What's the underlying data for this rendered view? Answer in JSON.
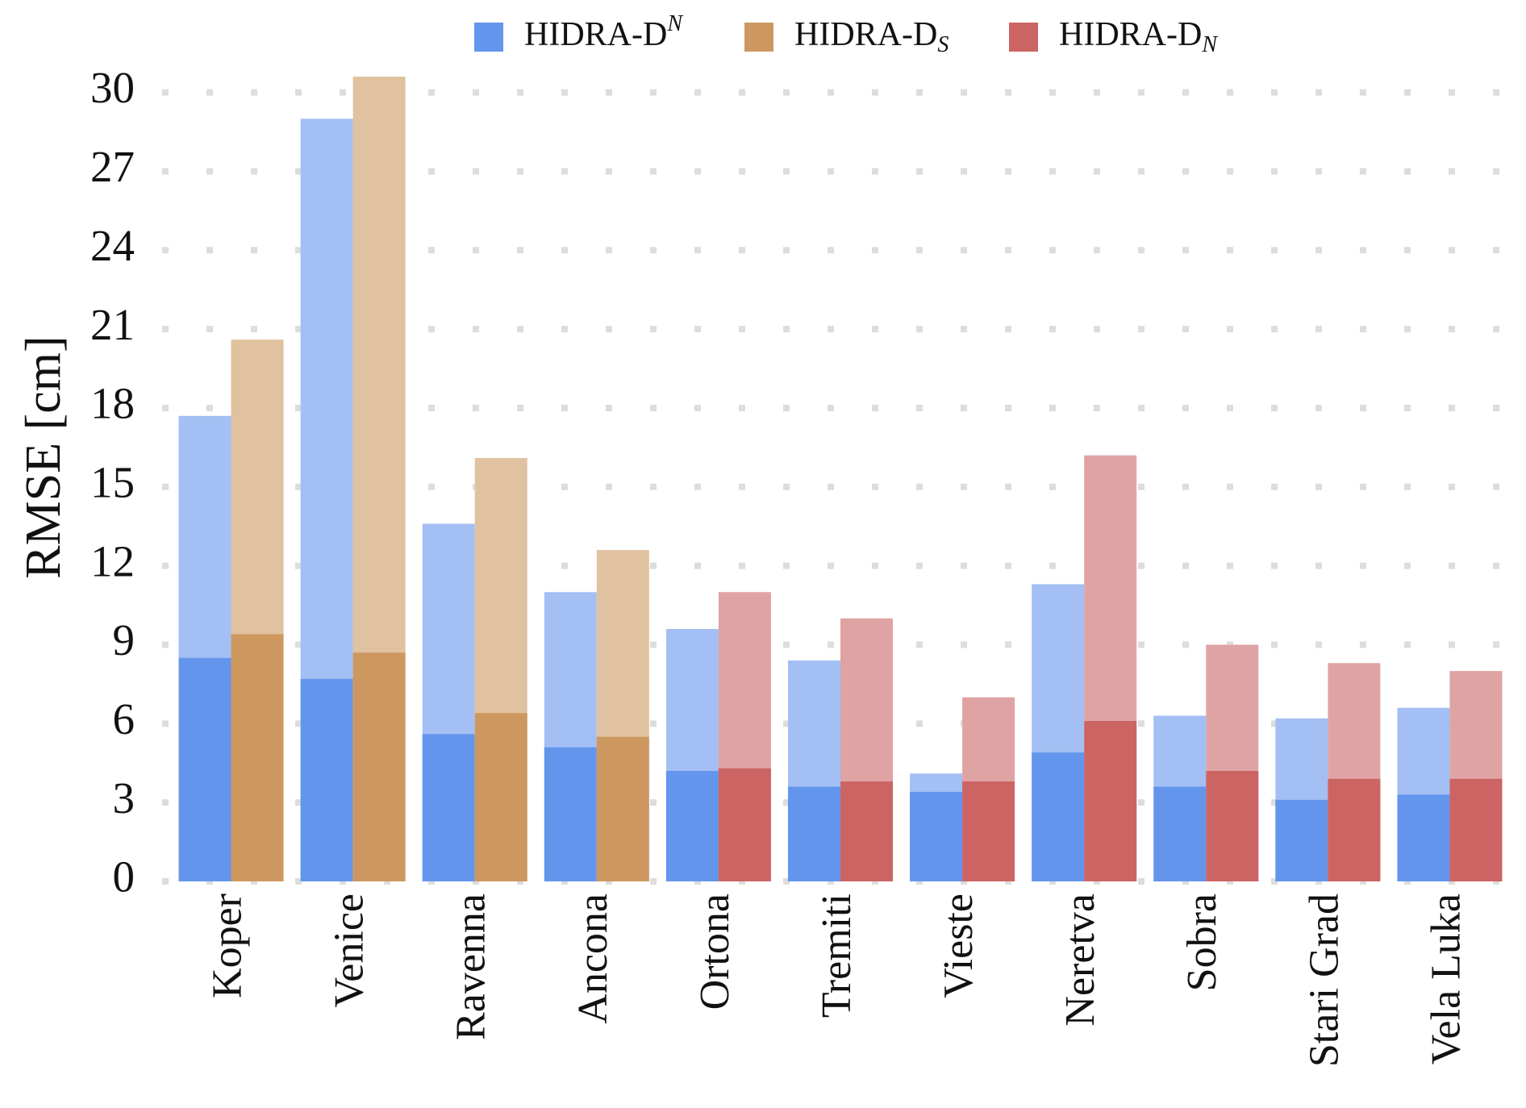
{
  "chart_data": {
    "type": "bar",
    "y_label": "RMSE [cm]",
    "categories": [
      "Koper",
      "Venice",
      "Ravenna",
      "Ancona",
      "Ortona",
      "Tremiti",
      "Vieste",
      "Neretva",
      "Sobra",
      "Stari Grad",
      "Vela Luka"
    ],
    "series": [
      {
        "name": "HIDRA-D",
        "name_sup": "N",
        "color": "#6495ed",
        "light_color": "#a3bff4",
        "values": [
          17.7,
          29.0,
          13.6,
          11.0,
          9.6,
          8.4,
          4.1,
          11.3,
          6.3,
          6.2,
          6.6
        ],
        "inner_values": [
          8.5,
          7.7,
          5.6,
          5.1,
          4.2,
          3.6,
          3.4,
          4.9,
          3.6,
          3.1,
          3.3
        ]
      },
      {
        "name": "HIDRA-D",
        "name_sub": "S",
        "color": "#cd9860",
        "light_color": "#e0c2a0",
        "values": [
          20.6,
          30.6,
          16.1,
          12.6,
          null,
          null,
          null,
          null,
          null,
          null,
          null
        ],
        "inner_values": [
          9.4,
          8.7,
          6.4,
          5.5,
          null,
          null,
          null,
          null,
          null,
          null,
          null
        ]
      },
      {
        "name": "HIDRA-D",
        "name_sub": "N",
        "color": "#cd6464",
        "light_color": "#e0a3a4",
        "values": [
          null,
          null,
          null,
          null,
          11.0,
          10.0,
          7.0,
          16.2,
          9.0,
          8.3,
          8.0
        ],
        "inner_values": [
          null,
          null,
          null,
          null,
          4.3,
          3.8,
          3.8,
          6.1,
          4.2,
          3.9,
          3.9
        ]
      }
    ],
    "ylim": [
      0,
      31
    ],
    "yticks": [
      0,
      3,
      6,
      9,
      12,
      15,
      18,
      21,
      24,
      27,
      30
    ],
    "grid": true,
    "legend": "top"
  }
}
